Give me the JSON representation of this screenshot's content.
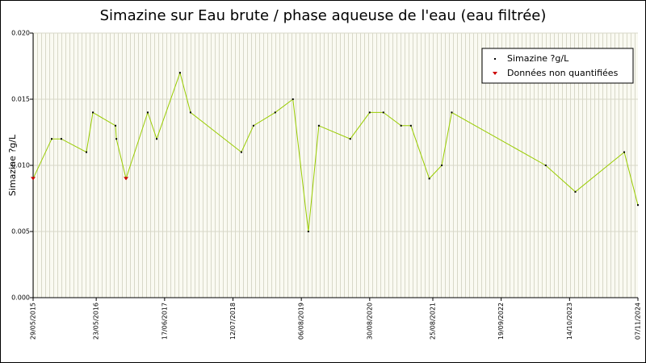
{
  "chart_data": {
    "type": "line",
    "title": "Simazine sur Eau brute / phase aqueuse de l'eau (eau filtrée)",
    "y_label": "Simazine ?g/L",
    "x": [
      "29/05/2015",
      "12/09/2015",
      "06/11/2015",
      "28/03/2016",
      "04/05/2016",
      "10/09/2016",
      "15/09/2016",
      "09/11/2016",
      "13/03/2017",
      "03/05/2017",
      "13/09/2017",
      "12/11/2017",
      "29/08/2018",
      "06/11/2018",
      "10/03/2019",
      "19/06/2019",
      "15/09/2019",
      "14/11/2019",
      "11/05/2020",
      "30/08/2020",
      "16/11/2020",
      "25/02/2021",
      "22/04/2021",
      "05/08/2021",
      "15/10/2021",
      "11/12/2021",
      "31/05/2023",
      "16/11/2023",
      "21/08/2024",
      "07/11/2024"
    ],
    "series": [
      {
        "name": "Simazine ?g/L",
        "color": "#99cc00",
        "marker_color": "#000000",
        "values": [
          0.009,
          0.012,
          0.012,
          0.011,
          0.014,
          0.013,
          0.012,
          0.009,
          0.014,
          0.012,
          0.017,
          0.014,
          0.011,
          0.013,
          0.014,
          0.015,
          0.005,
          0.013,
          0.012,
          0.014,
          0.014,
          0.013,
          0.013,
          0.009,
          0.01,
          0.014,
          0.01,
          0.008,
          0.011,
          0.007
        ]
      },
      {
        "name": "Données non quantifiées",
        "color": "#cc0000",
        "values": [
          0.009,
          null,
          null,
          null,
          null,
          null,
          null,
          0.009,
          null,
          null,
          null,
          null,
          null,
          null,
          null,
          null,
          null,
          null,
          null,
          null,
          null,
          null,
          null,
          null,
          null,
          null,
          null,
          null,
          null,
          null
        ]
      }
    ],
    "xlim": [
      "29/05/2015",
      "07/11/2024"
    ],
    "xticks": [
      "29/05/2015",
      "23/05/2016",
      "17/06/2017",
      "12/07/2018",
      "06/08/2019",
      "30/08/2020",
      "25/08/2021",
      "19/09/2022",
      "14/10/2023",
      "07/11/2024"
    ],
    "ylim": [
      0,
      0.02
    ],
    "yticks": [
      {
        "value": 0,
        "label": "0.000"
      },
      {
        "value": 0.005,
        "label": "0.005"
      },
      {
        "value": 0.01,
        "label": "0.010"
      },
      {
        "value": 0.015,
        "label": "0.015"
      },
      {
        "value": 0.02,
        "label": "0.020"
      }
    ],
    "grid": true,
    "legend": "top-right"
  }
}
